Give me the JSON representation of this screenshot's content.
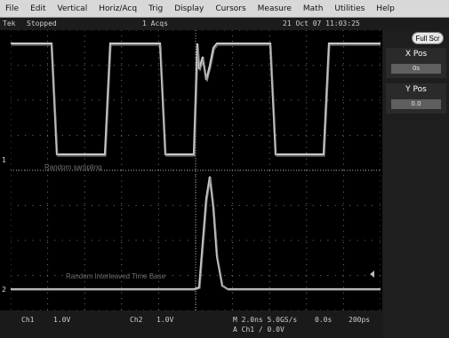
{
  "menu": {
    "items": [
      "File",
      "Edit",
      "Vertical",
      "Horiz/Acq",
      "Trig",
      "Display",
      "Cursors",
      "Measure",
      "Math",
      "Utilities",
      "Help"
    ]
  },
  "status": {
    "left": "Tek",
    "mode": "Stopped",
    "acqs": "1 Acqs",
    "datetime": "21 Oct 07 11:03:25"
  },
  "side_panel": {
    "fullscreen_label": "Full Scr",
    "x_pos": {
      "label": "X Pos",
      "value": "0s"
    },
    "y_pos": {
      "label": "Y Pos",
      "value": "0.0"
    }
  },
  "traces": {
    "upper_label": "Random sampling",
    "lower_label": "Random Interleaved Time Base"
  },
  "markers": {
    "ch1": "1",
    "ch2": "2"
  },
  "bottom": {
    "ch1_label": "Ch1",
    "ch1_scale": "1.0V",
    "ch2_label": "Ch2",
    "ch2_scale": "1.0V",
    "timebase": "M 2.0ns 5.0GS/s",
    "trigger": "A Ch1 / 0.0V",
    "pts": "0.0s",
    "ps": "200ps"
  },
  "colors": {
    "trace": "#c8c8c8",
    "grid": "#8a8a8a",
    "background": "#000000"
  }
}
